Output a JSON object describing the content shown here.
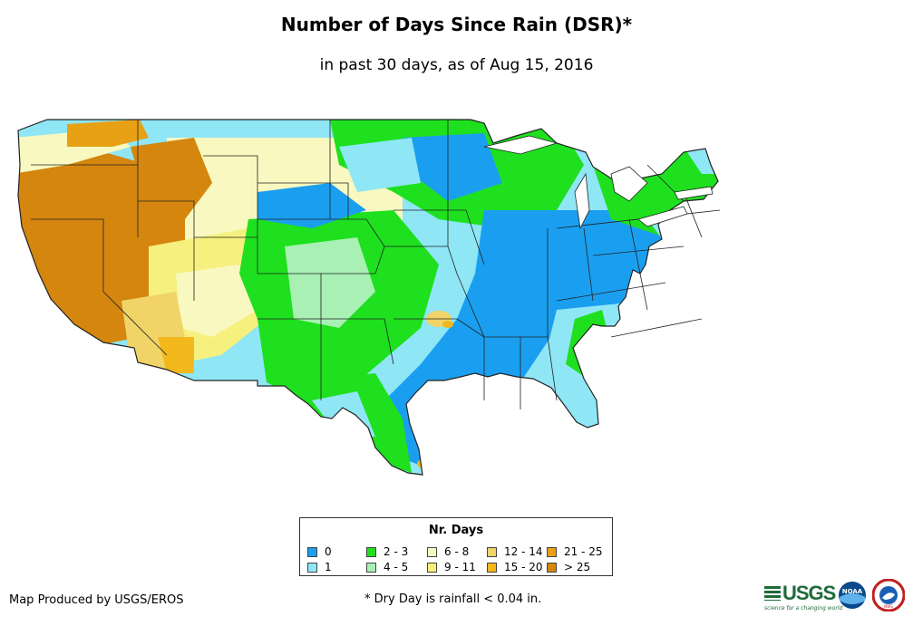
{
  "title": "Number of Days Since Rain (DSR)*",
  "subtitle": "in past 30 days, as of Aug 15, 2016",
  "legend": {
    "title": "Nr. Days",
    "items": [
      {
        "label": "0",
        "color": "#1a9ff0"
      },
      {
        "label": "1",
        "color": "#8fe6f5"
      },
      {
        "label": "2 - 3",
        "color": "#1ee01e"
      },
      {
        "label": "4 - 5",
        "color": "#a8f0b4"
      },
      {
        "label": "6 - 8",
        "color": "#f8f8c0"
      },
      {
        "label": "9 - 11",
        "color": "#f6f07e"
      },
      {
        "label": "12 - 14",
        "color": "#f0d468"
      },
      {
        "label": "15 - 20",
        "color": "#f2b81c"
      },
      {
        "label": "21 - 25",
        "color": "#e8a014"
      },
      {
        "label": "> 25",
        "color": "#d4860e"
      }
    ]
  },
  "footer": {
    "producer": "Map Produced by USGS/EROS",
    "footnote": "* Dry Day is rainfall < 0.04 in.",
    "logos": [
      {
        "name": "usgs-logo",
        "text": "USGS",
        "tagline": "science for a changing world"
      },
      {
        "name": "noaa-logo",
        "text": "NOAA"
      },
      {
        "name": "nws-logo",
        "text": "NWS"
      }
    ]
  }
}
